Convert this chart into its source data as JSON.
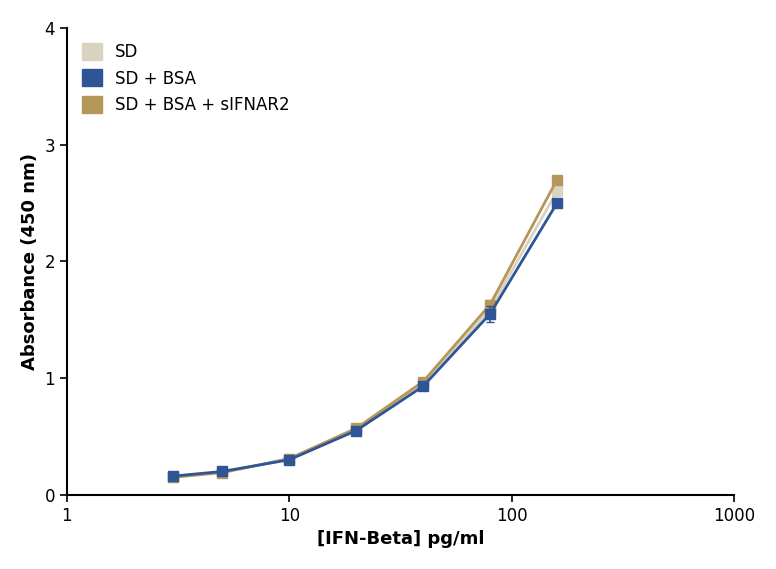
{
  "x_values": [
    3.0,
    5.0,
    10.0,
    20.0,
    40.0,
    80.0,
    160.0
  ],
  "y_bsa": [
    0.16,
    0.2,
    0.3,
    0.55,
    0.93,
    1.55,
    2.5
  ],
  "y_sifnar2": [
    0.15,
    0.19,
    0.31,
    0.57,
    0.97,
    1.63,
    2.7
  ],
  "y_sd": [
    0.155,
    0.195,
    0.305,
    0.56,
    0.95,
    1.59,
    2.6
  ],
  "yerr_bsa": [
    0.01,
    0.01,
    0.01,
    0.01,
    0.01,
    0.07,
    0.02
  ],
  "yerr_sifnar2": [
    0.01,
    0.01,
    0.01,
    0.01,
    0.01,
    0.04,
    0.02
  ],
  "color_sd": "#d9d3c2",
  "color_bsa": "#2f5597",
  "color_sifnar2": "#b5975a",
  "xlabel": "[IFN-Beta] pg/ml",
  "ylabel": "Absorbance (450 nm)",
  "ylim": [
    0,
    4
  ],
  "xlim": [
    1,
    1000
  ],
  "yticks": [
    0,
    1,
    2,
    3,
    4
  ],
  "legend_labels": [
    "SD",
    "SD + BSA",
    "SD + BSA + sIFNAR2"
  ],
  "background_color": "#ffffff",
  "marker": "s",
  "markersize": 7,
  "linewidth": 2.0
}
